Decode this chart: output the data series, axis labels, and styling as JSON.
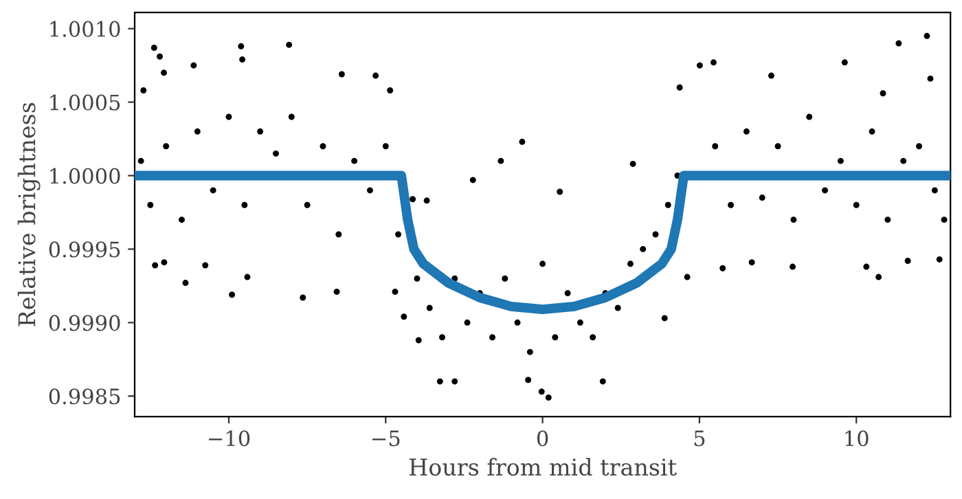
{
  "chart_data": {
    "type": "scatter",
    "xlabel": "Hours from mid transit",
    "ylabel": "Relative brightness",
    "xlim": [
      -13,
      13
    ],
    "ylim": [
      0.99836,
      1.00111
    ],
    "xticks": [
      {
        "value": -10,
        "label": "−10"
      },
      {
        "value": -5,
        "label": "−5"
      },
      0,
      5,
      10
    ],
    "yticks": [
      {
        "value": 0.9985,
        "label": "0.9985"
      },
      {
        "value": 0.999,
        "label": "0.9990"
      },
      {
        "value": 0.9995,
        "label": "0.9995"
      },
      {
        "value": 1.0,
        "label": "1.0000"
      },
      {
        "value": 1.0005,
        "label": "1.0005"
      },
      {
        "value": 1.001,
        "label": "1.0010"
      }
    ],
    "grid": false,
    "series": [
      {
        "color": "#000000",
        "marker": "circle",
        "x": [
          -12.38,
          -12.2,
          -9.61,
          -9.57,
          -8.08,
          -11.12,
          -12.72,
          -12.07,
          -6.4,
          -5.32,
          -4.86,
          -11.38,
          -9.41,
          -9.9,
          -7.64,
          -6.56,
          -12.35,
          -12.06,
          -10.75,
          -3.27,
          -2.8,
          -3.95,
          -4.42,
          -4.7,
          -4.14,
          -3.69,
          -2.22,
          -12.8,
          -12.5,
          -12.0,
          -11.5,
          -11.0,
          -10.5,
          -10.0,
          -9.5,
          -9.0,
          -8.5,
          -8.0,
          -7.5,
          -7.0,
          -6.5,
          -6.0,
          -5.5,
          -5.0,
          -4.6,
          -4.0,
          -3.6,
          -3.2,
          -2.8,
          -2.4,
          -2.0,
          -1.6,
          -1.2,
          -0.8,
          -0.4,
          0.0,
          0.4,
          0.8,
          1.2,
          1.6,
          2.0,
          2.4,
          2.8,
          3.2,
          3.6,
          4.0,
          4.3,
          -0.65,
          -1.33,
          0.55,
          -0.03,
          0.19,
          -0.46,
          1.92,
          2.88,
          3.89,
          4.61,
          5.01,
          5.45,
          4.37,
          7.29,
          9.63,
          11.35,
          12.25,
          12.36,
          10.85,
          5.74,
          7.97,
          10.32,
          10.71,
          11.64,
          12.65,
          6.67,
          5.5,
          6.0,
          6.5,
          7.0,
          7.5,
          8.0,
          8.5,
          9.0,
          9.5,
          10.0,
          10.5,
          11.0,
          11.5,
          12.0,
          12.5,
          12.8
        ],
        "values": [
          1.00087,
          1.00081,
          1.00088,
          1.00079,
          1.00089,
          1.00075,
          1.00058,
          1.0007,
          1.00069,
          1.00068,
          1.00058,
          0.99927,
          0.99931,
          0.99919,
          0.99917,
          0.99921,
          0.99939,
          0.99941,
          0.99939,
          0.9986,
          0.9986,
          0.99888,
          0.99904,
          0.99921,
          0.99984,
          0.99983,
          0.99997,
          1.0001,
          0.9998,
          1.0002,
          0.9997,
          1.0003,
          0.9999,
          1.0004,
          0.9998,
          1.0003,
          1.00015,
          1.0004,
          0.9998,
          1.0002,
          0.9996,
          1.0001,
          0.9999,
          1.0002,
          0.9996,
          0.9993,
          0.9991,
          0.9989,
          0.9993,
          0.999,
          0.9992,
          0.9989,
          0.9993,
          0.999,
          0.9988,
          0.9994,
          0.9989,
          0.9992,
          0.999,
          0.9989,
          0.9992,
          0.9991,
          0.9994,
          0.9995,
          0.9996,
          0.9998,
          1.0,
          1.00023,
          1.0001,
          0.99989,
          0.99853,
          0.99849,
          0.99861,
          0.9986,
          1.00008,
          0.99903,
          0.99931,
          1.00075,
          1.00077,
          1.0006,
          1.00068,
          1.00077,
          1.0009,
          1.00095,
          1.00066,
          1.00056,
          0.99937,
          0.99938,
          0.99938,
          0.99931,
          0.99942,
          0.99943,
          0.99941,
          1.0002,
          0.9998,
          1.0003,
          0.99985,
          1.0002,
          0.9997,
          1.0004,
          0.9999,
          1.0001,
          0.9998,
          1.0003,
          0.9997,
          1.0001,
          1.0002,
          0.9999,
          0.9997
        ]
      },
      {
        "type": "line",
        "color": "#1f77b4",
        "marker": "none",
        "line_style": "solid",
        "x": [
          -13,
          -4.5,
          -4.3,
          -4.1,
          -3.8,
          -3.0,
          -2.0,
          -1.0,
          0,
          1.0,
          2.0,
          3.0,
          3.8,
          4.1,
          4.3,
          4.5,
          13
        ],
        "values": [
          1.0,
          1.0,
          0.9997,
          0.9995,
          0.9994,
          0.99927,
          0.99917,
          0.99911,
          0.99909,
          0.99911,
          0.99917,
          0.99927,
          0.9994,
          0.9995,
          0.9997,
          1.0,
          1.0
        ]
      }
    ]
  }
}
